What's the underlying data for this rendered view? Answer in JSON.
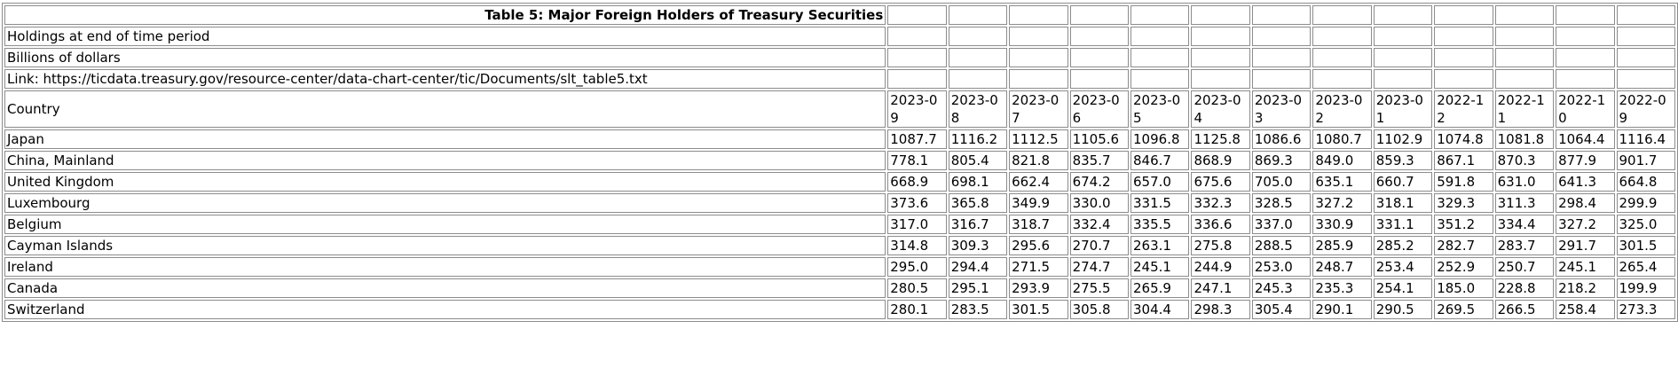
{
  "title": "Table 5: Major Foreign Holders of Treasury Securities",
  "meta_rows": [
    "Holdings at end of time period",
    "Billions of dollars",
    "Link: https://ticdata.treasury.gov/resource-center/data-chart-center/tic/Documents/slt_table5.txt"
  ],
  "header": {
    "label": "Country",
    "dates": [
      "2023-09",
      "2023-08",
      "2023-07",
      "2023-06",
      "2023-05",
      "2023-04",
      "2023-03",
      "2023-02",
      "2023-01",
      "2022-12",
      "2022-11",
      "2022-10",
      "2022-09"
    ]
  },
  "rows": [
    {
      "country": "Japan",
      "values": [
        "1087.7",
        "1116.2",
        "1112.5",
        "1105.6",
        "1096.8",
        "1125.8",
        "1086.6",
        "1080.7",
        "1102.9",
        "1074.8",
        "1081.8",
        "1064.4",
        "1116.4"
      ]
    },
    {
      "country": "China, Mainland",
      "values": [
        "778.1",
        "805.4",
        "821.8",
        "835.7",
        "846.7",
        "868.9",
        "869.3",
        "849.0",
        "859.3",
        "867.1",
        "870.3",
        "877.9",
        "901.7"
      ]
    },
    {
      "country": "United Kingdom",
      "values": [
        "668.9",
        "698.1",
        "662.4",
        "674.2",
        "657.0",
        "675.6",
        "705.0",
        "635.1",
        "660.7",
        "591.8",
        "631.0",
        "641.3",
        "664.8"
      ]
    },
    {
      "country": "Luxembourg",
      "values": [
        "373.6",
        "365.8",
        "349.9",
        "330.0",
        "331.5",
        "332.3",
        "328.5",
        "327.2",
        "318.1",
        "329.3",
        "311.3",
        "298.4",
        "299.9"
      ]
    },
    {
      "country": "Belgium",
      "values": [
        "317.0",
        "316.7",
        "318.7",
        "332.4",
        "335.5",
        "336.6",
        "337.0",
        "330.9",
        "331.1",
        "351.2",
        "334.4",
        "327.2",
        "325.0"
      ]
    },
    {
      "country": "Cayman Islands",
      "values": [
        "314.8",
        "309.3",
        "295.6",
        "270.7",
        "263.1",
        "275.8",
        "288.5",
        "285.9",
        "285.2",
        "282.7",
        "283.7",
        "291.7",
        "301.5"
      ]
    },
    {
      "country": "Ireland",
      "values": [
        "295.0",
        "294.4",
        "271.5",
        "274.7",
        "245.1",
        "244.9",
        "253.0",
        "248.7",
        "253.4",
        "252.9",
        "250.7",
        "245.1",
        "265.4"
      ]
    },
    {
      "country": "Canada",
      "values": [
        "280.5",
        "295.1",
        "293.9",
        "275.5",
        "265.9",
        "247.1",
        "245.3",
        "235.3",
        "254.1",
        "185.0",
        "228.8",
        "218.2",
        "199.9"
      ]
    },
    {
      "country": "Switzerland",
      "values": [
        "280.1",
        "283.5",
        "301.5",
        "305.8",
        "304.4",
        "298.3",
        "305.4",
        "290.1",
        "290.5",
        "269.5",
        "266.5",
        "258.4",
        "273.3"
      ]
    }
  ]
}
